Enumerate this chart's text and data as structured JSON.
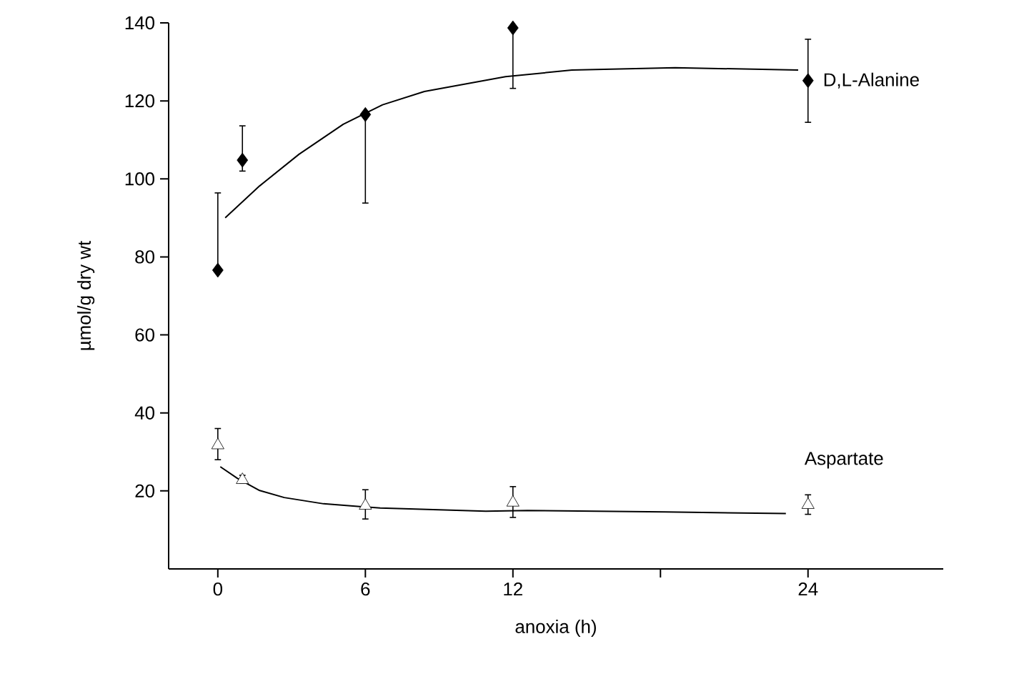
{
  "chart_data": {
    "type": "scatter",
    "xlabel": "anoxia (h)",
    "ylabel": "µmol/g dry wt",
    "xlim": [
      -2,
      29.5
    ],
    "ylim": [
      0,
      140
    ],
    "xticks": [
      0,
      6,
      12,
      {
        "value": 18,
        "label": null
      },
      24
    ],
    "yticks": [
      20,
      40,
      60,
      80,
      100,
      120,
      140
    ],
    "series": [
      {
        "name": "D,L-Alanine",
        "marker": "diamond",
        "color": "#000000",
        "x": [
          0,
          1,
          6,
          12,
          24
        ],
        "values": [
          76.6,
          104.8,
          116.5,
          138.7,
          125.2
        ],
        "errors": [
          [
            76.6,
            96.4
          ],
          [
            102,
            113.6
          ],
          [
            93.8,
            116.5
          ],
          [
            123.2,
            138.7
          ],
          [
            114.5,
            135.8
          ]
        ]
      },
      {
        "type": "line",
        "marker": "none",
        "line_style": "solid",
        "color": "#000000",
        "x": [
          0.3,
          1.7,
          3.3,
          5.1,
          6.7,
          8.4,
          11.7,
          14.4,
          18.6,
          23.6
        ],
        "values": [
          90,
          98.2,
          106.3,
          114,
          119,
          122.4,
          126.2,
          127.9,
          128.5,
          127.9
        ]
      },
      {
        "name": "Aspartate",
        "marker": "triangle",
        "color": "#000000",
        "x": [
          0,
          1,
          6,
          12,
          24
        ],
        "values": [
          31.7,
          22.8,
          16.2,
          17,
          16.4
        ],
        "errors": [
          [
            28,
            36
          ],
          [
            22,
            24
          ],
          [
            12.8,
            20.3
          ],
          [
            13.2,
            21.1
          ],
          [
            14,
            19
          ]
        ]
      },
      {
        "type": "line",
        "marker": "none",
        "line_style": "solid",
        "color": "#000000",
        "x": [
          0.1,
          0.8,
          1.7,
          2.7,
          4.3,
          6.6,
          10.9,
          12.6,
          18.2,
          23.1
        ],
        "values": [
          26.2,
          23.2,
          20.1,
          18.3,
          16.7,
          15.6,
          14.8,
          15,
          14.6,
          14.2
        ]
      }
    ]
  }
}
